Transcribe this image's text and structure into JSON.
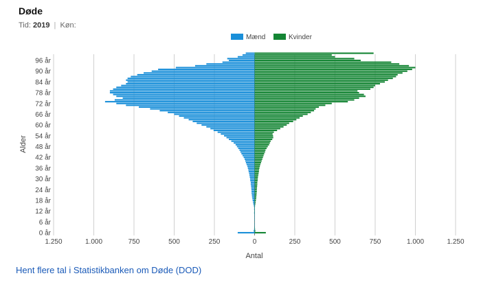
{
  "header": {
    "title": "Døde",
    "tid_label": "Tid:",
    "tid_value": "2019",
    "separator": "|",
    "kon_label": "Køn:"
  },
  "link_text": "Hent flere tal i Statistikbanken om Døde (DOD)",
  "colors": {
    "maend": "#1a8fd9",
    "kvinder": "#148534",
    "grid": "#cfcfcf",
    "zero_line": "#7a7a7a"
  },
  "chart_data": {
    "type": "bar",
    "orientation": "horizontal",
    "title": "",
    "xlabel": "Antal",
    "ylabel": "Alder",
    "xlim": [
      -1250,
      1250
    ],
    "x_ticks": [
      -1250,
      -1000,
      -750,
      -500,
      -250,
      0,
      250,
      500,
      750,
      1000,
      1250
    ],
    "x_tick_labels": [
      "1.250",
      "1.000",
      "750",
      "500",
      "250",
      "0",
      "250",
      "500",
      "750",
      "1.000",
      "1.250"
    ],
    "y_tick_labels": [
      "96 år",
      "90 år",
      "84 år",
      "78 år",
      "72 år",
      "66 år",
      "60 år",
      "54 år",
      "48 år",
      "42 år",
      "36 år",
      "30 år",
      "24 år",
      "18 år",
      "12 år",
      "6 år",
      "0 år"
    ],
    "legend": [
      "Mænd",
      "Kvinder"
    ],
    "legend_position": "top",
    "grid": true,
    "ages": [
      0,
      1,
      2,
      3,
      4,
      5,
      6,
      7,
      8,
      9,
      10,
      11,
      12,
      13,
      14,
      15,
      16,
      17,
      18,
      19,
      20,
      21,
      22,
      23,
      24,
      25,
      26,
      27,
      28,
      29,
      30,
      31,
      32,
      33,
      34,
      35,
      36,
      37,
      38,
      39,
      40,
      41,
      42,
      43,
      44,
      45,
      46,
      47,
      48,
      49,
      50,
      51,
      52,
      53,
      54,
      55,
      56,
      57,
      58,
      59,
      60,
      61,
      62,
      63,
      64,
      65,
      66,
      67,
      68,
      69,
      70,
      71,
      72,
      73,
      74,
      75,
      76,
      77,
      78,
      79,
      80,
      81,
      82,
      83,
      84,
      85,
      86,
      87,
      88,
      89,
      90,
      91,
      92,
      93,
      94,
      95,
      96,
      97,
      98,
      99,
      100
    ],
    "series": [
      {
        "name": "Mænd",
        "values": [
          105,
          6,
          3,
          2,
          2,
          2,
          1,
          2,
          2,
          2,
          2,
          3,
          2,
          3,
          3,
          5,
          8,
          10,
          12,
          14,
          16,
          17,
          19,
          19,
          20,
          21,
          22,
          24,
          24,
          27,
          28,
          30,
          32,
          34,
          37,
          39,
          42,
          45,
          50,
          54,
          58,
          62,
          68,
          75,
          82,
          88,
          94,
          102,
          110,
          118,
          130,
          145,
          160,
          175,
          190,
          210,
          230,
          255,
          275,
          300,
          330,
          360,
          385,
          410,
          440,
          470,
          500,
          540,
          590,
          650,
          720,
          800,
          860,
          930,
          870,
          820,
          860,
          880,
          900,
          900,
          880,
          860,
          830,
          800,
          790,
          800,
          790,
          770,
          730,
          690,
          640,
          600,
          490,
          370,
          300,
          200,
          160,
          170,
          105,
          75,
          55
        ]
      },
      {
        "name": "Kvinder",
        "values": [
          70,
          5,
          3,
          2,
          1,
          1,
          1,
          1,
          1,
          1,
          1,
          2,
          2,
          2,
          2,
          3,
          5,
          7,
          8,
          10,
          11,
          12,
          13,
          14,
          14,
          15,
          16,
          17,
          17,
          19,
          20,
          21,
          23,
          25,
          27,
          28,
          30,
          33,
          36,
          40,
          44,
          48,
          52,
          56,
          60,
          65,
          68,
          75,
          82,
          90,
          95,
          100,
          110,
          116,
          115,
          112,
          120,
          140,
          160,
          180,
          200,
          215,
          240,
          260,
          280,
          300,
          330,
          350,
          370,
          380,
          400,
          440,
          480,
          580,
          620,
          650,
          690,
          680,
          650,
          640,
          720,
          740,
          750,
          780,
          810,
          830,
          860,
          880,
          890,
          920,
          950,
          980,
          1000,
          960,
          900,
          850,
          660,
          620,
          500,
          480,
          740
        ]
      }
    ]
  }
}
